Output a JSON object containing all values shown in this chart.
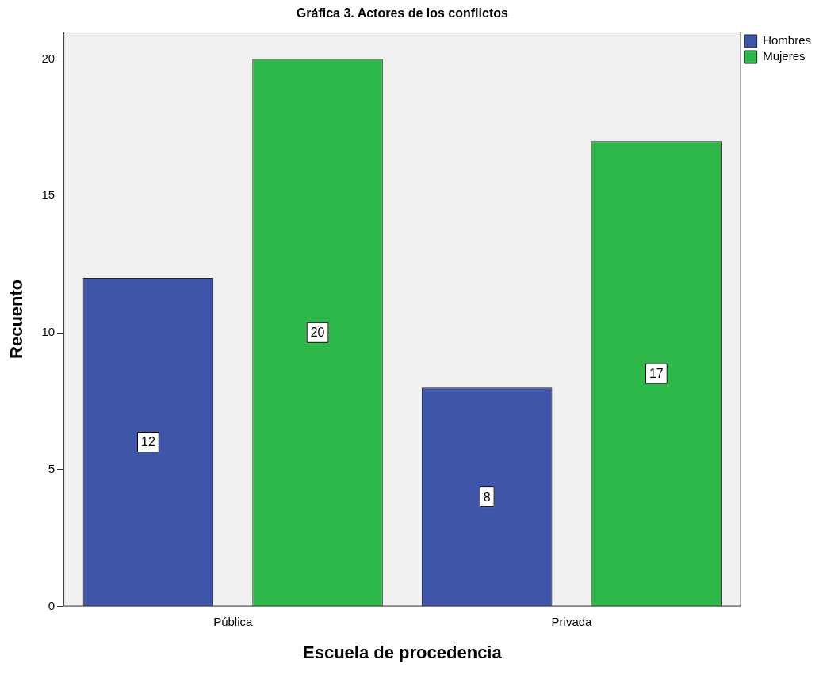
{
  "chart_data": {
    "type": "bar",
    "title": "Gráfica 3. Actores de los conflictos",
    "xlabel": "Escuela de procedencia",
    "ylabel": "Recuento",
    "categories": [
      "Pública",
      "Privada"
    ],
    "series": [
      {
        "name": "Hombres",
        "color": "#3e55a9",
        "values": [
          12,
          8
        ]
      },
      {
        "name": "Mujeres",
        "color": "#2fb84a",
        "values": [
          20,
          17
        ]
      }
    ],
    "ylim": [
      0,
      21
    ],
    "yticks": [
      0,
      5,
      10,
      15,
      20
    ],
    "grid": false,
    "legend": "right",
    "data_labels": true
  }
}
